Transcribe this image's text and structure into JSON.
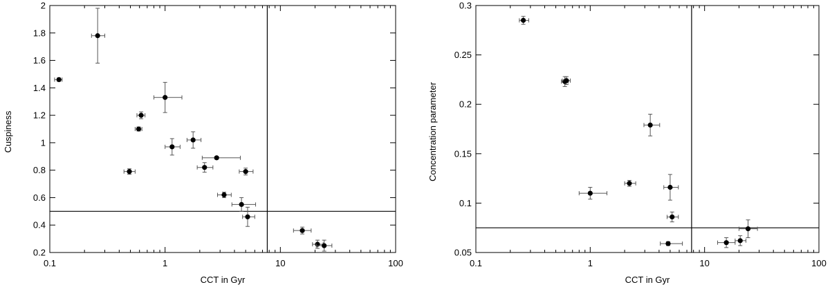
{
  "chart_data": [
    {
      "type": "scatter",
      "xlabel": "CCT in Gyr",
      "ylabel": "Cuspiness",
      "xscale": "log",
      "xlim": [
        0.1,
        100
      ],
      "ylim": [
        0.2,
        2.0
      ],
      "x_ticks": [
        0.1,
        1,
        10,
        100
      ],
      "x_tick_labels": [
        "0.1",
        "1",
        "10",
        "100"
      ],
      "y_ticks": [
        0.2,
        0.4,
        0.6,
        0.8,
        1.0,
        1.2,
        1.4,
        1.6,
        1.8,
        2.0
      ],
      "y_tick_labels": [
        "0.2",
        "0.4",
        "0.6",
        "0.8",
        "1",
        "1.2",
        "1.4",
        "1.6",
        "1.8",
        "2"
      ],
      "grid": false,
      "reference_lines": {
        "vertical_x": 7.7,
        "horizontal_y": 0.5
      },
      "points": [
        {
          "x": 0.12,
          "y": 1.46,
          "xerr": [
            0.01,
            0.008
          ],
          "yerr": [
            0.012,
            0.012
          ]
        },
        {
          "x": 0.26,
          "y": 1.78,
          "xerr": [
            0.03,
            0.04
          ],
          "yerr": [
            0.2,
            0.2
          ]
        },
        {
          "x": 0.49,
          "y": 0.79,
          "xerr": [
            0.05,
            0.06
          ],
          "yerr": [
            0.02,
            0.02
          ]
        },
        {
          "x": 0.59,
          "y": 1.1,
          "xerr": [
            0.04,
            0.04
          ],
          "yerr": [
            0.015,
            0.015
          ]
        },
        {
          "x": 0.62,
          "y": 1.2,
          "xerr": [
            0.05,
            0.05
          ],
          "yerr": [
            0.025,
            0.025
          ]
        },
        {
          "x": 1.0,
          "y": 1.33,
          "xerr": [
            0.2,
            0.4
          ],
          "yerr": [
            0.11,
            0.11
          ]
        },
        {
          "x": 1.15,
          "y": 0.97,
          "xerr": [
            0.15,
            0.2
          ],
          "yerr": [
            0.06,
            0.06
          ]
        },
        {
          "x": 1.75,
          "y": 1.02,
          "xerr": [
            0.2,
            0.3
          ],
          "yerr": [
            0.06,
            0.06
          ]
        },
        {
          "x": 2.2,
          "y": 0.82,
          "xerr": [
            0.3,
            0.4
          ],
          "yerr": [
            0.035,
            0.035
          ]
        },
        {
          "x": 2.8,
          "y": 0.89,
          "xerr": [
            0.7,
            1.7
          ],
          "yerr": [
            0.01,
            0.01
          ]
        },
        {
          "x": 3.25,
          "y": 0.62,
          "xerr": [
            0.4,
            0.5
          ],
          "yerr": [
            0.02,
            0.02
          ]
        },
        {
          "x": 4.6,
          "y": 0.55,
          "xerr": [
            0.8,
            1.5
          ],
          "yerr": [
            0.05,
            0.05
          ]
        },
        {
          "x": 5.0,
          "y": 0.79,
          "xerr": [
            0.6,
            0.8
          ],
          "yerr": [
            0.025,
            0.025
          ]
        },
        {
          "x": 5.2,
          "y": 0.46,
          "xerr": [
            0.5,
            0.8
          ],
          "yerr": [
            0.07,
            0.07
          ]
        },
        {
          "x": 15.5,
          "y": 0.36,
          "xerr": [
            2.5,
            3.0
          ],
          "yerr": [
            0.025,
            0.025
          ]
        },
        {
          "x": 21.0,
          "y": 0.26,
          "xerr": [
            2.0,
            2.5
          ],
          "yerr": [
            0.03,
            0.03
          ]
        },
        {
          "x": 24.0,
          "y": 0.25,
          "xerr": [
            3.5,
            4.0
          ],
          "yerr": [
            0.04,
            0.04
          ]
        }
      ]
    },
    {
      "type": "scatter",
      "xlabel": "CCT in Gyr",
      "ylabel": "Concentration parameter",
      "xscale": "log",
      "xlim": [
        0.1,
        100
      ],
      "ylim": [
        0.05,
        0.3
      ],
      "x_ticks": [
        0.1,
        1,
        10,
        100
      ],
      "x_tick_labels": [
        "0.1",
        "1",
        "10",
        "100"
      ],
      "y_ticks": [
        0.05,
        0.1,
        0.15,
        0.2,
        0.25,
        0.3
      ],
      "y_tick_labels": [
        "0.05",
        "0.1",
        "0.15",
        "0.2",
        "0.25",
        "0.3"
      ],
      "grid": false,
      "reference_lines": {
        "vertical_x": 7.7,
        "horizontal_y": 0.075
      },
      "points": [
        {
          "x": 0.26,
          "y": 0.285,
          "xerr": [
            0.02,
            0.03
          ],
          "yerr": [
            0.004,
            0.004
          ]
        },
        {
          "x": 0.6,
          "y": 0.223,
          "xerr": [
            0.04,
            0.04
          ],
          "yerr": [
            0.005,
            0.005
          ]
        },
        {
          "x": 0.62,
          "y": 0.224,
          "xerr": [
            0.05,
            0.05
          ],
          "yerr": [
            0.004,
            0.004
          ]
        },
        {
          "x": 1.0,
          "y": 0.11,
          "xerr": [
            0.2,
            0.4
          ],
          "yerr": [
            0.006,
            0.006
          ]
        },
        {
          "x": 2.2,
          "y": 0.12,
          "xerr": [
            0.2,
            0.3
          ],
          "yerr": [
            0.003,
            0.003
          ]
        },
        {
          "x": 3.35,
          "y": 0.179,
          "xerr": [
            0.4,
            0.7
          ],
          "yerr": [
            0.011,
            0.011
          ]
        },
        {
          "x": 4.8,
          "y": 0.059,
          "xerr": [
            0.7,
            1.6
          ],
          "yerr": [
            0.002,
            0.002
          ]
        },
        {
          "x": 5.0,
          "y": 0.116,
          "xerr": [
            0.6,
            0.9
          ],
          "yerr": [
            0.013,
            0.013
          ]
        },
        {
          "x": 5.2,
          "y": 0.086,
          "xerr": [
            0.5,
            0.7
          ],
          "yerr": [
            0.005,
            0.005
          ]
        },
        {
          "x": 15.5,
          "y": 0.06,
          "xerr": [
            2.5,
            3.0
          ],
          "yerr": [
            0.005,
            0.005
          ]
        },
        {
          "x": 20.5,
          "y": 0.062,
          "xerr": [
            2.0,
            2.5
          ],
          "yerr": [
            0.005,
            0.005
          ]
        },
        {
          "x": 24.0,
          "y": 0.074,
          "xerr": [
            4.0,
            5.0
          ],
          "yerr": [
            0.009,
            0.009
          ]
        }
      ]
    }
  ]
}
